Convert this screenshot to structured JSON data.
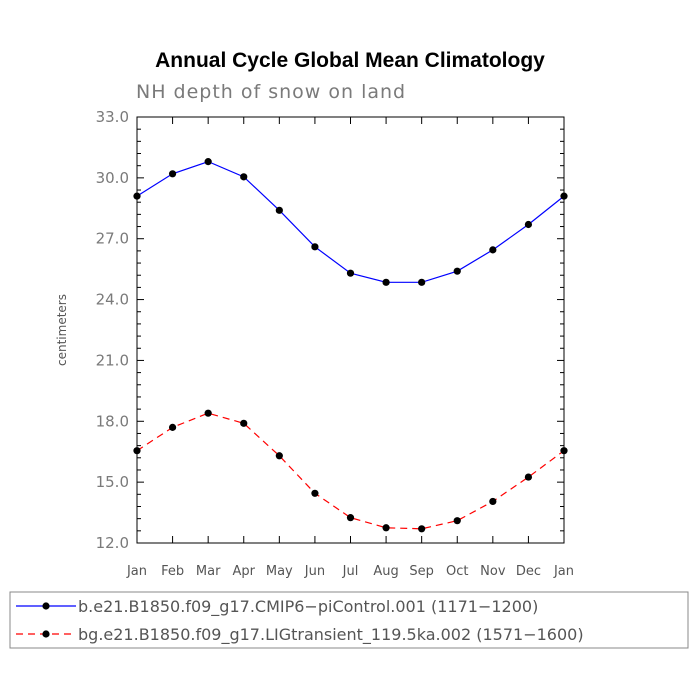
{
  "chart_data": {
    "type": "line",
    "title": "Annual Cycle Global Mean Climatology",
    "subtitle": "NH depth of snow on land",
    "xlabel": "",
    "ylabel": "centimeters",
    "categories": [
      "Jan",
      "Feb",
      "Mar",
      "Apr",
      "May",
      "Jun",
      "Jul",
      "Aug",
      "Sep",
      "Oct",
      "Nov",
      "Dec",
      "Jan"
    ],
    "ylim": [
      12.0,
      33.0
    ],
    "yticks": [
      "12.0",
      "15.0",
      "18.0",
      "21.0",
      "24.0",
      "27.0",
      "30.0",
      "33.0"
    ],
    "series": [
      {
        "name": "b.e21.B1850.f09_g17.CMIP6−piControl.001 (1171−1200)",
        "color": "#0000ff",
        "dash": "solid",
        "values": [
          29.1,
          30.2,
          30.8,
          30.05,
          28.4,
          26.6,
          25.3,
          24.85,
          24.85,
          25.4,
          26.45,
          27.7,
          29.1
        ]
      },
      {
        "name": "bg.e21.B1850.f09_g17.LIGtransient_119.5ka.002 (1571−1600)",
        "color": "#ff0000",
        "dash": "dashed",
        "values": [
          16.55,
          17.7,
          18.4,
          17.9,
          16.3,
          14.45,
          13.25,
          12.75,
          12.7,
          13.1,
          14.05,
          15.25,
          16.55
        ]
      }
    ],
    "legend_position": "bottom"
  }
}
